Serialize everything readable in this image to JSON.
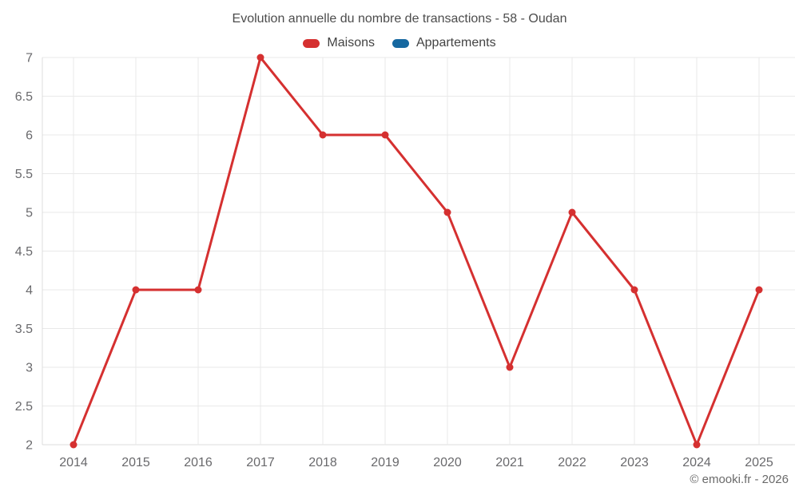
{
  "title": "Evolution annuelle du nombre de transactions - 58 - Oudan",
  "legend": {
    "items": [
      {
        "label": "Maisons",
        "color": "#d53030"
      },
      {
        "label": "Appartements",
        "color": "#1668a0"
      }
    ]
  },
  "footer": {
    "copyright": "© emooki.fr - 2026"
  },
  "chart_data": {
    "type": "line",
    "title": "Evolution annuelle du nombre de transactions - 58 - Oudan",
    "categories": [
      "2014",
      "2015",
      "2016",
      "2017",
      "2018",
      "2019",
      "2020",
      "2021",
      "2022",
      "2023",
      "2024",
      "2025"
    ],
    "series": [
      {
        "name": "Maisons",
        "color": "#d53030",
        "values": [
          2,
          4,
          4,
          7,
          6,
          6,
          5,
          3,
          5,
          4,
          2,
          4
        ]
      },
      {
        "name": "Appartements",
        "color": "#1668a0",
        "values": []
      }
    ],
    "xlabel": "",
    "ylabel": "",
    "ylim": [
      2,
      7
    ],
    "yticks": [
      2,
      2.5,
      3,
      3.5,
      4,
      4.5,
      5,
      5.5,
      6,
      6.5,
      7
    ],
    "grid": true,
    "legend_position": "top",
    "marker_radius": 4.5,
    "line_width": 3,
    "colors": {
      "grid": "#e9e9e9",
      "axis_line": "#dcdcdc",
      "axis_text": "#69696c",
      "title_text": "#4c4c4c"
    }
  }
}
